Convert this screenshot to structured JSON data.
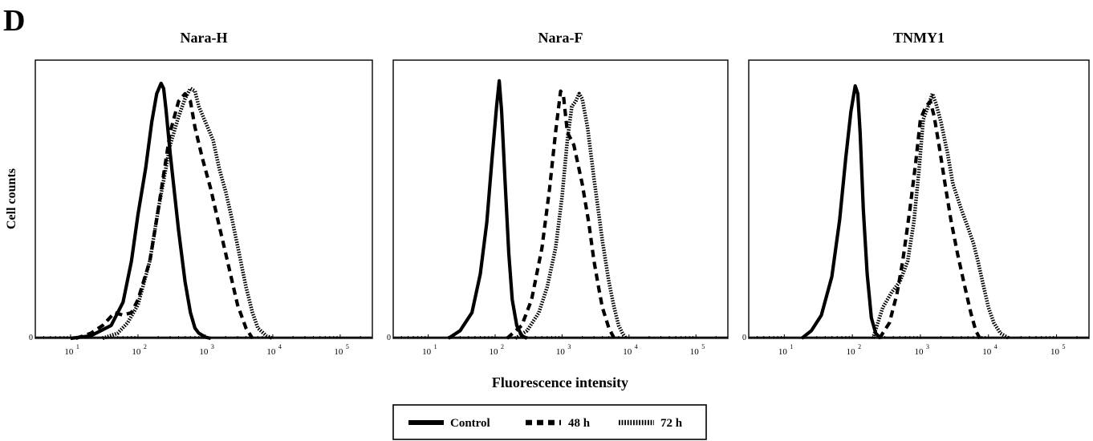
{
  "panel_label": "D",
  "ylabel": "Cell counts",
  "xlabel": "Fluorescence intensity",
  "y_zero_label": "0",
  "x_ticks": [
    {
      "base": "10",
      "exp": "1",
      "value": 10
    },
    {
      "base": "10",
      "exp": "2",
      "value": 100
    },
    {
      "base": "10",
      "exp": "3",
      "value": 1000
    },
    {
      "base": "10",
      "exp": "4",
      "value": 10000
    },
    {
      "base": "10",
      "exp": "5",
      "value": 100000
    }
  ],
  "legend": {
    "items": [
      {
        "label": "Control",
        "style": "solid"
      },
      {
        "label": "48 h",
        "style": "dashed"
      },
      {
        "label": "72 h",
        "style": "dotted"
      }
    ]
  },
  "chart_data": [
    {
      "type": "line",
      "title": "Nara-H",
      "x_scale": "log",
      "xlim": [
        3,
        300000
      ],
      "ylim": [
        0,
        1.08
      ],
      "series": [
        {
          "name": "Control",
          "style": "solid",
          "x": [
            10,
            20,
            40,
            60,
            80,
            100,
            130,
            160,
            190,
            220,
            240,
            260,
            300,
            400,
            500,
            600,
            700,
            800,
            1000,
            1200
          ],
          "y": [
            0,
            0.01,
            0.05,
            0.14,
            0.3,
            0.48,
            0.66,
            0.84,
            0.95,
            0.99,
            0.97,
            0.89,
            0.72,
            0.42,
            0.22,
            0.1,
            0.04,
            0.02,
            0.005,
            0
          ]
        },
        {
          "name": "48 h",
          "style": "dashed",
          "x": [
            12,
            20,
            30,
            45,
            60,
            80,
            100,
            150,
            200,
            300,
            400,
            500,
            600,
            700,
            900,
            1200,
            1500,
            2000,
            3000,
            4000,
            5000
          ],
          "y": [
            0,
            0.02,
            0.05,
            0.1,
            0.09,
            0.1,
            0.15,
            0.3,
            0.5,
            0.8,
            0.92,
            0.95,
            0.92,
            0.82,
            0.7,
            0.58,
            0.47,
            0.33,
            0.13,
            0.04,
            0
          ]
        },
        {
          "name": "72 h",
          "style": "dotted",
          "x": [
            30,
            50,
            70,
            100,
            150,
            200,
            300,
            400,
            500,
            600,
            700,
            800,
            1000,
            1300,
            1600,
            2000,
            2500,
            3000,
            4000,
            5000,
            6000,
            8000,
            10000
          ],
          "y": [
            0,
            0.02,
            0.06,
            0.13,
            0.3,
            0.5,
            0.75,
            0.86,
            0.93,
            0.97,
            0.96,
            0.9,
            0.84,
            0.77,
            0.66,
            0.57,
            0.46,
            0.36,
            0.2,
            0.1,
            0.04,
            0.01,
            0
          ]
        }
      ]
    },
    {
      "type": "line",
      "title": "Nara-F",
      "x_scale": "log",
      "xlim": [
        3,
        300000
      ],
      "ylim": [
        0,
        1.08
      ],
      "series": [
        {
          "name": "Control",
          "style": "solid",
          "x": [
            20,
            30,
            45,
            60,
            75,
            90,
            105,
            115,
            125,
            140,
            160,
            180,
            210,
            250,
            300
          ],
          "y": [
            0,
            0.03,
            0.1,
            0.25,
            0.45,
            0.7,
            0.9,
            1.0,
            0.88,
            0.62,
            0.33,
            0.15,
            0.05,
            0.01,
            0
          ]
        },
        {
          "name": "48 h",
          "style": "dashed",
          "x": [
            150,
            250,
            350,
            500,
            650,
            800,
            950,
            1050,
            1200,
            1500,
            2000,
            2500,
            3000,
            3500,
            4000,
            5000,
            6000
          ],
          "y": [
            0,
            0.05,
            0.15,
            0.35,
            0.58,
            0.8,
            0.96,
            0.94,
            0.8,
            0.75,
            0.6,
            0.45,
            0.3,
            0.2,
            0.12,
            0.04,
            0
          ]
        },
        {
          "name": "72 h",
          "style": "dotted",
          "x": [
            200,
            300,
            450,
            600,
            800,
            1000,
            1200,
            1400,
            1600,
            1800,
            2000,
            2400,
            3000,
            4000,
            5000,
            6000,
            7000,
            8000,
            9000
          ],
          "y": [
            0,
            0.03,
            0.1,
            0.2,
            0.35,
            0.55,
            0.77,
            0.9,
            0.92,
            0.95,
            0.93,
            0.82,
            0.62,
            0.38,
            0.22,
            0.12,
            0.05,
            0.02,
            0
          ]
        }
      ]
    },
    {
      "type": "line",
      "title": "TNMY1",
      "x_scale": "log",
      "xlim": [
        3,
        300000
      ],
      "ylim": [
        0,
        1.08
      ],
      "series": [
        {
          "name": "Control",
          "style": "solid",
          "x": [
            18,
            25,
            35,
            50,
            65,
            80,
            95,
            110,
            120,
            130,
            145,
            165,
            190,
            220,
            260
          ],
          "y": [
            0,
            0.03,
            0.09,
            0.24,
            0.46,
            0.7,
            0.88,
            0.98,
            0.95,
            0.8,
            0.5,
            0.25,
            0.08,
            0.02,
            0
          ]
        },
        {
          "name": "48 h",
          "style": "dashed",
          "x": [
            250,
            350,
            450,
            550,
            700,
            850,
            1000,
            1200,
            1400,
            1600,
            1900,
            2300,
            2800,
            3500,
            4500,
            5500,
            6500,
            7500
          ],
          "y": [
            0,
            0.06,
            0.17,
            0.3,
            0.5,
            0.68,
            0.85,
            0.9,
            0.92,
            0.86,
            0.74,
            0.6,
            0.46,
            0.33,
            0.2,
            0.1,
            0.03,
            0
          ]
        },
        {
          "name": "72 h",
          "style": "dotted",
          "x": [
            200,
            280,
            380,
            500,
            650,
            800,
            950,
            1100,
            1300,
            1500,
            1700,
            2000,
            2500,
            3000,
            4000,
            5000,
            6000,
            7000,
            8500,
            10000,
            12000,
            15000,
            20000
          ],
          "y": [
            0,
            0.12,
            0.18,
            0.22,
            0.3,
            0.45,
            0.65,
            0.85,
            0.9,
            0.95,
            0.91,
            0.84,
            0.72,
            0.6,
            0.5,
            0.43,
            0.37,
            0.3,
            0.2,
            0.12,
            0.06,
            0.02,
            0
          ]
        }
      ]
    }
  ]
}
